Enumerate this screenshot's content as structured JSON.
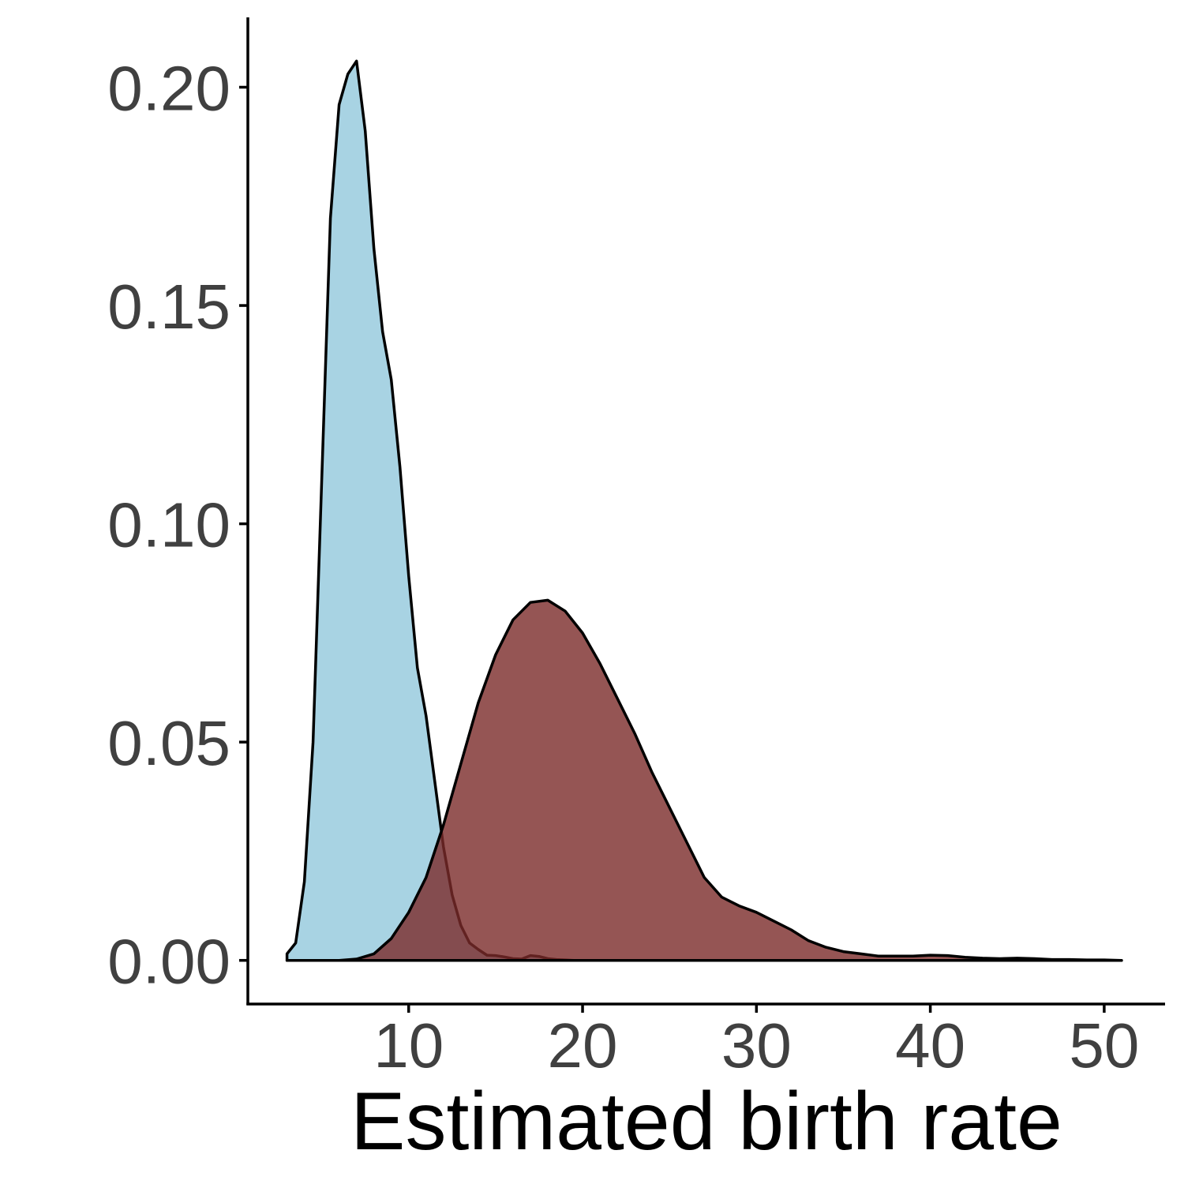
{
  "chart_data": {
    "type": "area",
    "xlabel": "Estimated birth rate",
    "ylabel": "",
    "xlim": [
      0.75,
      53.5
    ],
    "ylim": [
      -0.01,
      0.216
    ],
    "x_ticks": [
      10,
      20,
      30,
      40,
      50
    ],
    "x_tick_labels": [
      "10",
      "20",
      "30",
      "40",
      "50"
    ],
    "y_ticks": [
      0.0,
      0.05,
      0.1,
      0.15,
      0.2
    ],
    "y_tick_labels": [
      "0.00",
      "0.05",
      "0.10",
      "0.15",
      "0.20"
    ],
    "grid": false,
    "legend": "none",
    "series": [
      {
        "color": "#a8d3e3",
        "opacity": 1.0,
        "x": [
          3.0,
          3.5,
          4.0,
          4.5,
          5.0,
          5.5,
          6.0,
          6.5,
          7.0,
          7.5,
          8.0,
          8.5,
          9.0,
          9.5,
          10.0,
          10.5,
          11.0,
          11.5,
          12.0,
          12.5,
          13.0,
          13.5,
          14.0,
          14.5,
          15.0,
          15.5,
          16.0,
          16.5,
          17.0,
          17.5,
          18.0,
          18.5,
          19.0,
          19.5,
          20.0,
          21.0,
          22.0,
          51.0
        ],
        "y": [
          0.0015,
          0.004,
          0.018,
          0.05,
          0.11,
          0.17,
          0.196,
          0.203,
          0.206,
          0.19,
          0.163,
          0.144,
          0.133,
          0.113,
          0.088,
          0.067,
          0.056,
          0.041,
          0.026,
          0.015,
          0.008,
          0.004,
          0.0025,
          0.0012,
          0.0011,
          0.0008,
          0.0004,
          0.0003,
          0.0011,
          0.0009,
          0.0004,
          0.0002,
          0.0001,
          0.0,
          0.0,
          0.0,
          0.0,
          0.0
        ]
      },
      {
        "color": "#7a2a29",
        "opacity": 0.8,
        "x": [
          3.0,
          4.0,
          5.0,
          6.0,
          7.0,
          8.0,
          9.0,
          10.0,
          11.0,
          12.0,
          13.0,
          14.0,
          15.0,
          16.0,
          17.0,
          18.0,
          19.0,
          20.0,
          21.0,
          22.0,
          23.0,
          24.0,
          25.0,
          26.0,
          27.0,
          28.0,
          29.0,
          30.0,
          31.0,
          32.0,
          33.0,
          34.0,
          35.0,
          36.0,
          37.0,
          38.0,
          39.0,
          40.0,
          41.0,
          42.0,
          43.0,
          44.0,
          45.0,
          46.0,
          47.0,
          48.0,
          49.0,
          50.0,
          51.0
        ],
        "y": [
          0.0,
          0.0,
          0.0,
          0.0,
          0.0003,
          0.0015,
          0.005,
          0.011,
          0.019,
          0.031,
          0.045,
          0.059,
          0.07,
          0.078,
          0.082,
          0.0825,
          0.08,
          0.075,
          0.068,
          0.06,
          0.052,
          0.043,
          0.035,
          0.027,
          0.019,
          0.0145,
          0.0125,
          0.011,
          0.009,
          0.007,
          0.0045,
          0.003,
          0.002,
          0.0015,
          0.001,
          0.001,
          0.001,
          0.0012,
          0.0011,
          0.0007,
          0.0005,
          0.0004,
          0.0005,
          0.0004,
          0.0002,
          0.0002,
          0.0001,
          0.0001,
          0.0
        ]
      }
    ]
  }
}
